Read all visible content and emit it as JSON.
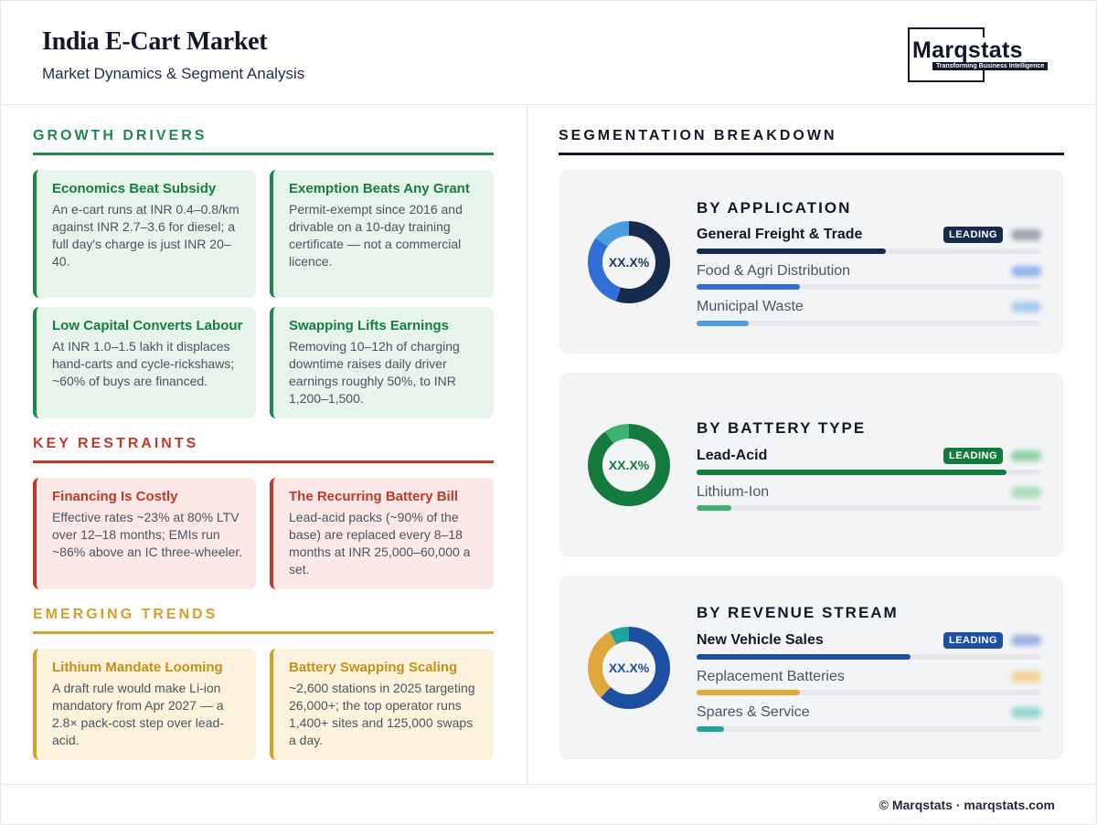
{
  "header": {
    "title": "India E-Cart Market",
    "subtitle": "Market Dynamics & Segment Analysis",
    "logo_text": "Marqstats",
    "logo_tagline": "Transforming Business Intelligence"
  },
  "drivers": {
    "heading": "GROWTH DRIVERS",
    "color": "#1b8a4a",
    "cards": [
      {
        "title": "Economics Beat Subsidy",
        "body": "An e-cart runs at INR 0.4–0.8/km against INR 2.7–3.6 for diesel; a full day's charge is just INR 20–40."
      },
      {
        "title": "Exemption Beats Any Grant",
        "body": "Permit-exempt since 2016 and drivable on a 10-day training certificate — not a commercial licence."
      },
      {
        "title": "Low Capital Converts Labour",
        "body": "At INR 1.0–1.5 lakh it displaces hand-carts and cycle-rickshaws; ~60% of buys are financed."
      },
      {
        "title": "Swapping Lifts Earnings",
        "body": "Removing 10–12h of charging downtime raises daily driver earnings roughly 50%, to INR 1,200–1,500."
      }
    ]
  },
  "restraints": {
    "heading": "KEY RESTRAINTS",
    "color": "#c0392b",
    "cards": [
      {
        "title": "Financing Is Costly",
        "body": "Effective rates ~23% at 80% LTV over 12–18 months; EMIs run ~86% above an IC three-wheeler."
      },
      {
        "title": "The Recurring Battery Bill",
        "body": "Lead-acid packs (~90% of the base) are replaced every 8–18 months at INR 25,000–60,000 a set."
      }
    ]
  },
  "trends": {
    "heading": "EMERGING TRENDS",
    "color": "#d4a02c",
    "cards": [
      {
        "title": "Lithium Mandate Looming",
        "body": "A draft rule would make Li-ion mandatory from Apr 2027 — a 2.8× pack-cost step over lead-acid."
      },
      {
        "title": "Battery Swapping Scaling",
        "body": "~2,600 stations in 2025 targeting 26,000+; the top operator runs 1,400+ sites and 125,000 swaps a day."
      }
    ]
  },
  "segmentation": {
    "heading": "SEGMENTATION BREAKDOWN",
    "badge": "LEADING",
    "donut_label": "XX.X%",
    "panels": [
      {
        "title": "BY APPLICATION",
        "color": "#1e3a5f",
        "rows": [
          {
            "label": "General Freight & Trade",
            "share": 0.55,
            "color": "#172b4d"
          },
          {
            "label": "Food & Agri Distribution",
            "share": 0.3,
            "color": "#2f6fd6"
          },
          {
            "label": "Municipal Waste",
            "share": 0.15,
            "color": "#4a9de0"
          }
        ]
      },
      {
        "title": "BY BATTERY TYPE",
        "color": "#157a3e",
        "rows": [
          {
            "label": "Lead-Acid",
            "share": 0.9,
            "color": "#157a3e"
          },
          {
            "label": "Lithium-Ion",
            "share": 0.1,
            "color": "#3cb371"
          }
        ]
      },
      {
        "title": "BY REVENUE STREAM",
        "color": "#1f4fa3",
        "rows": [
          {
            "label": "New Vehicle Sales",
            "share": 0.62,
            "color": "#1f4fa3"
          },
          {
            "label": "Replacement Batteries",
            "share": 0.3,
            "color": "#e0a83a"
          },
          {
            "label": "Spares & Service",
            "share": 0.08,
            "color": "#1fa5a0"
          }
        ]
      }
    ]
  },
  "footer": {
    "text": "© Marqstats · marqstats.com"
  }
}
